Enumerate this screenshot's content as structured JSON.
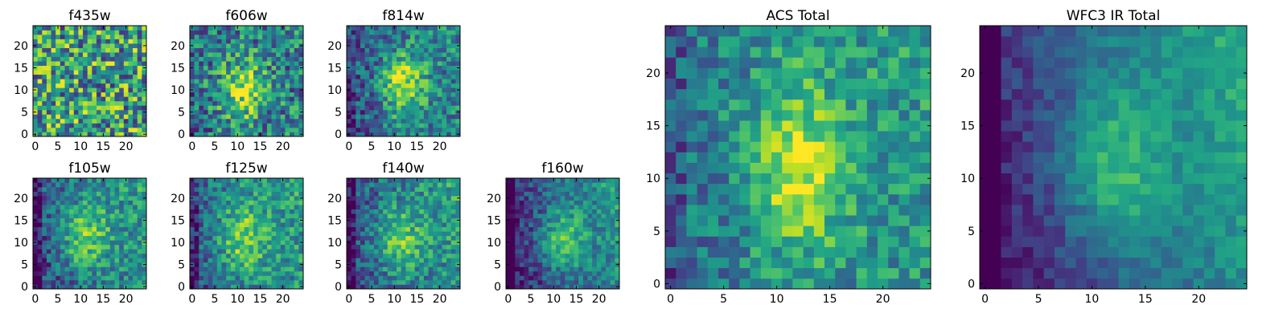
{
  "chart_data": [
    {
      "type": "heatmap",
      "title": "f435w",
      "grid": "25x25",
      "xlim": [
        0,
        24
      ],
      "ylim": [
        0,
        24
      ],
      "xticks": [
        "0",
        "5",
        "10",
        "15",
        "20"
      ],
      "yticks": [
        "0",
        "5",
        "10",
        "15",
        "20"
      ],
      "colormap": "viridis",
      "pattern": {
        "noise": 0.42,
        "base": 0.56
      }
    },
    {
      "type": "heatmap",
      "title": "f606w",
      "grid": "25x25",
      "xlim": [
        0,
        24
      ],
      "ylim": [
        0,
        24
      ],
      "xticks": [
        "0",
        "5",
        "10",
        "15",
        "20"
      ],
      "yticks": [
        "0",
        "5",
        "10",
        "15",
        "20"
      ],
      "colormap": "viridis",
      "pattern": {
        "cx": 11,
        "cy": 10,
        "sx": 3.5,
        "sy": 5,
        "amp": 0.45,
        "noise": 0.32,
        "base": 0.4,
        "grad": 0.06
      }
    },
    {
      "type": "heatmap",
      "title": "f814w",
      "grid": "25x25",
      "xlim": [
        0,
        24
      ],
      "ylim": [
        0,
        24
      ],
      "xticks": [
        "0",
        "5",
        "10",
        "15",
        "20"
      ],
      "yticks": [
        "0",
        "5",
        "10",
        "15",
        "20"
      ],
      "colormap": "viridis",
      "pattern": {
        "cx": 12,
        "cy": 11,
        "sx": 3.5,
        "sy": 5.5,
        "amp": 0.5,
        "noise": 0.25,
        "base": 0.32,
        "grad": 0.2
      }
    },
    {
      "type": "heatmap",
      "title": "f105w",
      "grid": "25x25",
      "xlim": [
        0,
        24
      ],
      "ylim": [
        0,
        24
      ],
      "xticks": [
        "0",
        "5",
        "10",
        "15",
        "20"
      ],
      "yticks": [
        "0",
        "5",
        "10",
        "15",
        "20"
      ],
      "colormap": "viridis",
      "pattern": {
        "cx": 11,
        "cy": 11,
        "sx": 4,
        "sy": 6,
        "amp": 0.4,
        "noise": 0.22,
        "base": 0.3,
        "grad": 0.35
      }
    },
    {
      "type": "heatmap",
      "title": "f125w",
      "grid": "25x25",
      "xlim": [
        0,
        24
      ],
      "ylim": [
        0,
        24
      ],
      "xticks": [
        "0",
        "5",
        "10",
        "15",
        "20"
      ],
      "yticks": [
        "0",
        "5",
        "10",
        "15",
        "20"
      ],
      "colormap": "viridis",
      "pattern": {
        "cx": 11,
        "cy": 11,
        "sx": 4,
        "sy": 6,
        "amp": 0.4,
        "noise": 0.22,
        "base": 0.35,
        "grad": 0.3
      }
    },
    {
      "type": "heatmap",
      "title": "f140w",
      "grid": "25x25",
      "xlim": [
        0,
        24
      ],
      "ylim": [
        0,
        24
      ],
      "xticks": [
        "0",
        "5",
        "10",
        "15",
        "20"
      ],
      "yticks": [
        "0",
        "5",
        "10",
        "15",
        "20"
      ],
      "colormap": "viridis",
      "pattern": {
        "cx": 11,
        "cy": 10,
        "sx": 4,
        "sy": 5.5,
        "amp": 0.38,
        "noise": 0.22,
        "base": 0.3,
        "grad": 0.38
      }
    },
    {
      "type": "heatmap",
      "title": "f160w",
      "grid": "25x25",
      "xlim": [
        0,
        24
      ],
      "ylim": [
        0,
        24
      ],
      "xticks": [
        "0",
        "5",
        "10",
        "15",
        "20"
      ],
      "yticks": [
        "0",
        "5",
        "10",
        "15",
        "20"
      ],
      "colormap": "viridis",
      "pattern": {
        "cx": 12,
        "cy": 10,
        "sx": 3.5,
        "sy": 5,
        "amp": 0.42,
        "noise": 0.18,
        "base": 0.22,
        "grad": 0.45
      }
    },
    {
      "type": "heatmap",
      "title": "ACS Total",
      "grid": "25x25",
      "xlim": [
        0,
        24
      ],
      "ylim": [
        0,
        24
      ],
      "xticks": [
        "0",
        "5",
        "10",
        "15",
        "20"
      ],
      "yticks": [
        "0",
        "5",
        "10",
        "15",
        "20"
      ],
      "colormap": "viridis",
      "pattern": {
        "cx": 12,
        "cy": 11,
        "sx": 3.5,
        "sy": 6,
        "amp": 0.45,
        "noise": 0.2,
        "base": 0.42,
        "grad": 0.18
      }
    },
    {
      "type": "heatmap",
      "title": "WFC3 IR Total",
      "grid": "25x25",
      "xlim": [
        0,
        24
      ],
      "ylim": [
        0,
        24
      ],
      "xticks": [
        "0",
        "5",
        "10",
        "15",
        "20"
      ],
      "yticks": [
        "0",
        "5",
        "10",
        "15",
        "20"
      ],
      "colormap": "viridis",
      "pattern": {
        "cx": 12,
        "cy": 11,
        "sx": 3.5,
        "sy": 5.5,
        "amp": 0.35,
        "noise": 0.1,
        "base": 0.2,
        "grad": 0.55
      }
    }
  ]
}
